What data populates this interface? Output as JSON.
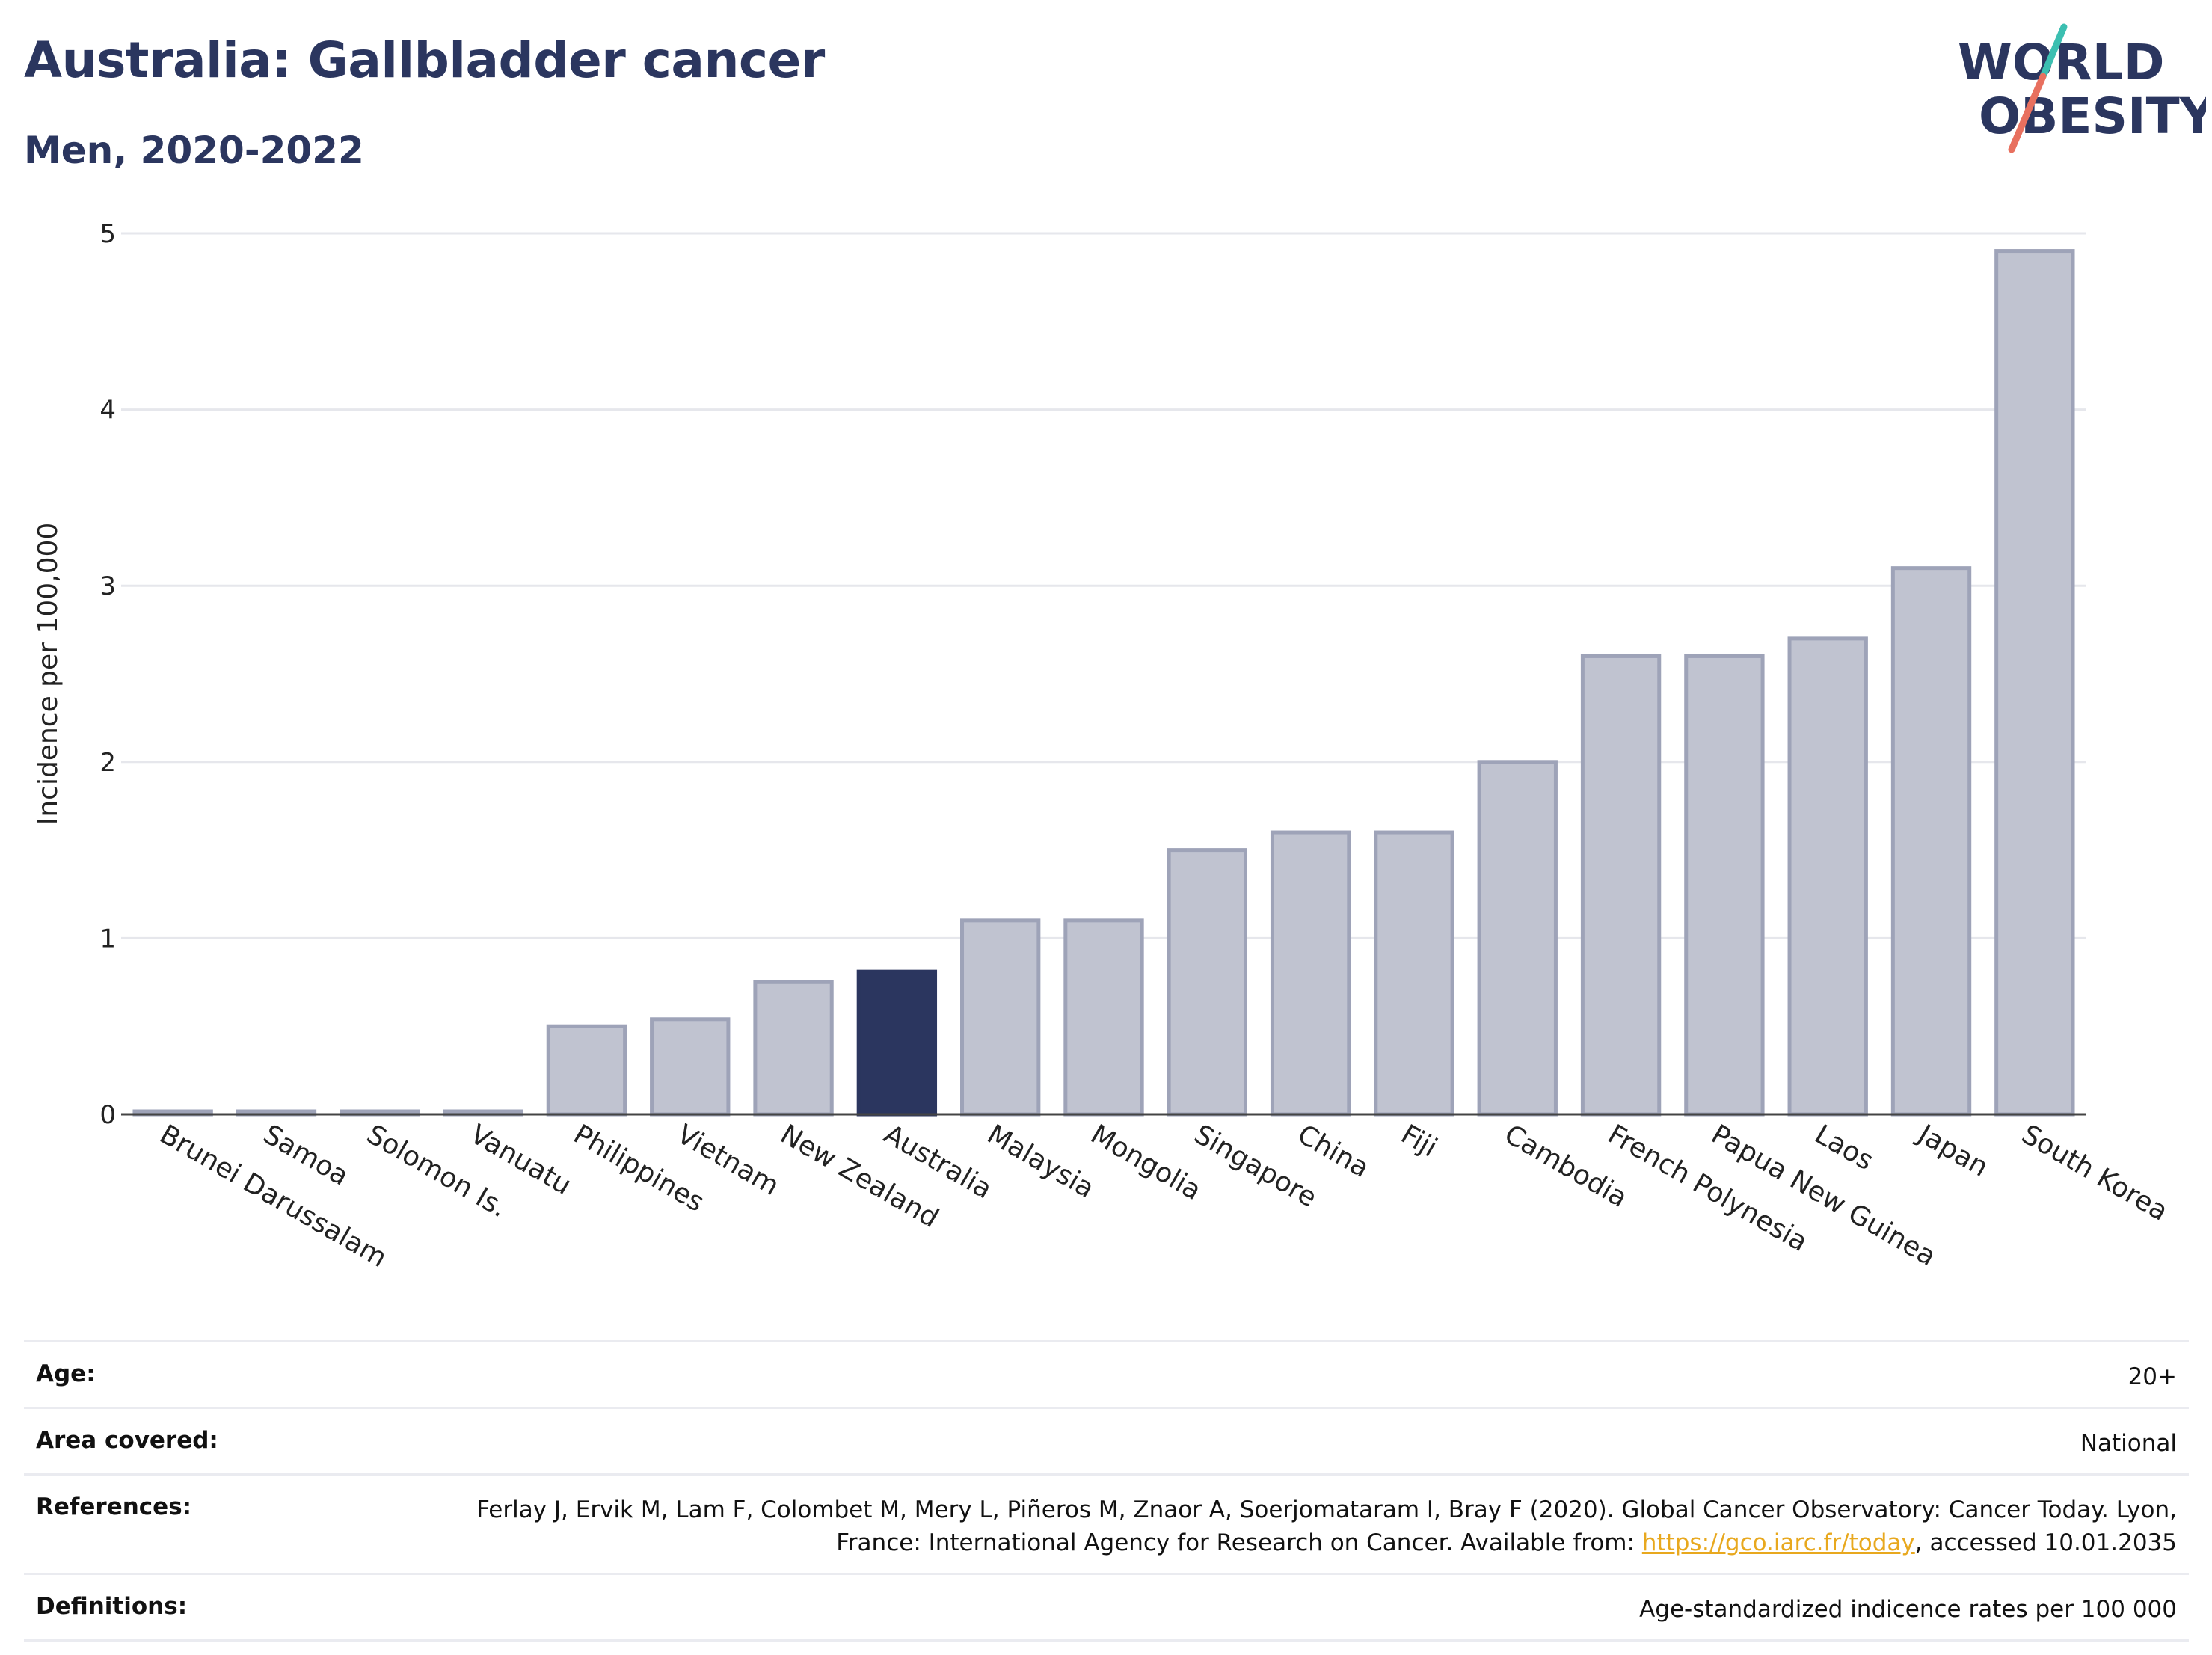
{
  "header": {
    "title": "Australia: Gallbladder cancer",
    "subtitle": "Men, 2020-2022"
  },
  "logo": {
    "line1": "WORLD",
    "line2": "OBESITY"
  },
  "colors": {
    "highlight": "#2b365f",
    "bar_fill": "#c0c3d0",
    "bar_stroke": "#9ea3b8",
    "text_dark": "#2b365f",
    "link": "#e8a81e",
    "logo_teal": "#3bbfb1",
    "logo_coral": "#e8705f"
  },
  "chart_data": {
    "type": "bar",
    "ylabel": "Incidence per 100,000",
    "ylim": [
      0,
      5
    ],
    "yticks": [
      "0",
      "1",
      "2",
      "3",
      "4",
      "5"
    ],
    "grid": true,
    "highlight": "Australia",
    "categories": [
      "Brunei Darussalam",
      "Samoa",
      "Solomon Is.",
      "Vanuatu",
      "Philippines",
      "Vietnam",
      "New Zealand",
      "Australia",
      "Malaysia",
      "Mongolia",
      "Singapore",
      "China",
      "Fiji",
      "Cambodia",
      "French Polynesia",
      "Papua New Guinea",
      "Laos",
      "Japan",
      "South Korea"
    ],
    "values": [
      0,
      0,
      0,
      0,
      0.5,
      0.54,
      0.75,
      0.81,
      1.1,
      1.1,
      1.5,
      1.6,
      1.6,
      2.0,
      2.6,
      2.6,
      2.7,
      3.1,
      4.9
    ]
  },
  "footer": {
    "age_label": "Age:",
    "age_value": "20+",
    "area_label": "Area covered:",
    "area_value": "National",
    "references_label": "References:",
    "references_text_1": "Ferlay J, Ervik M, Lam F, Colombet M, Mery L, Piñeros M, Znaor A, Soerjomataram I, Bray F (2020). Global Cancer Observatory: Cancer Today. Lyon, France: International Agency for Research on Cancer. Available from: ",
    "references_link": "https://gco.iarc.fr/today",
    "references_text_2": ", accessed 10.01.2035",
    "definitions_label": "Definitions:",
    "definitions_value": "Age-standardized indicence rates per 100 000"
  }
}
